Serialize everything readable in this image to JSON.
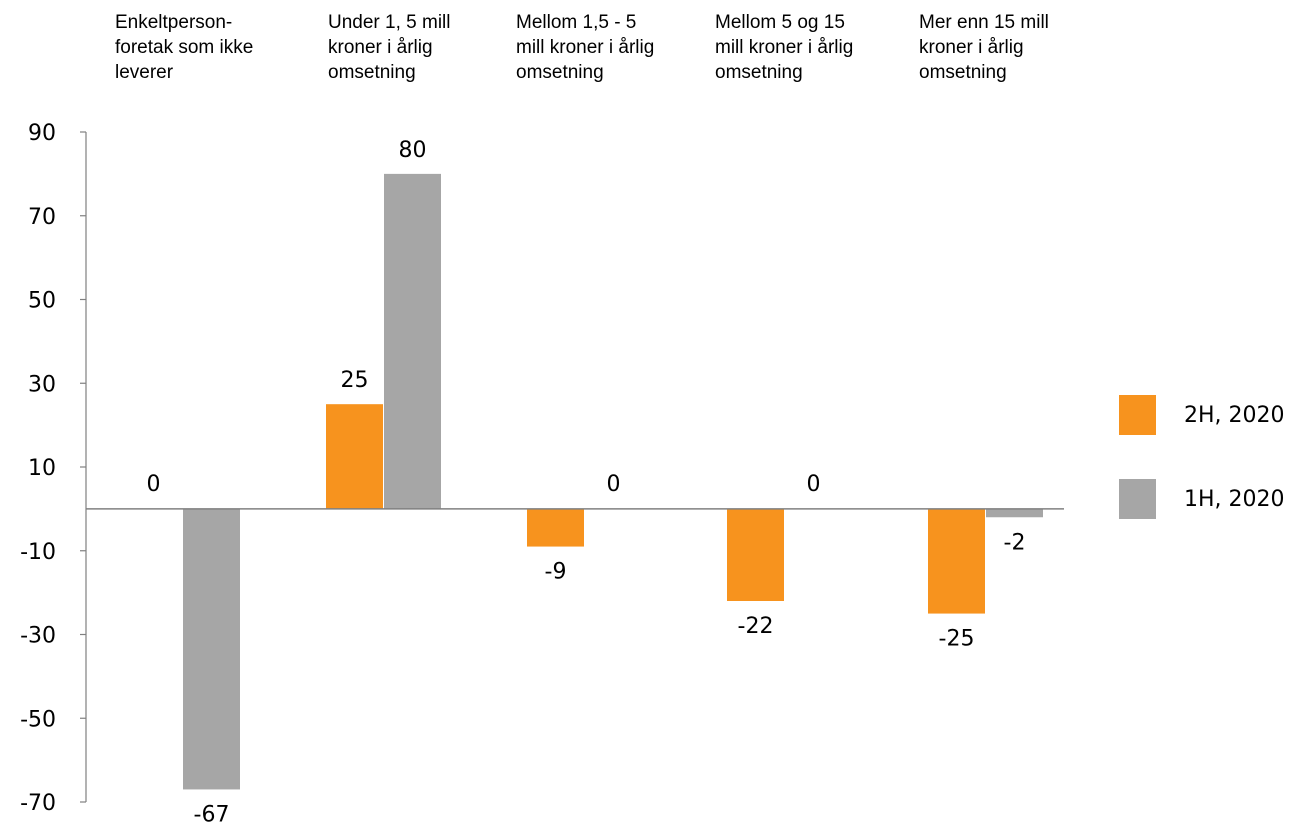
{
  "chart_data": {
    "type": "bar",
    "categories": [
      "Enkeltperson-foretak som ikke leverer",
      "Under 1, 5 mill kroner i årlig omsetning",
      "Mellom 1,5 - 5 mill kroner i årlig omsetning",
      "Mellom 5 og 15 mill kroner i årlig omsetning",
      "Mer enn 15 mill kroner i årlig omsetning"
    ],
    "category_lines": [
      [
        "Enkeltperson-",
        "foretak som ikke",
        "leverer"
      ],
      [
        "Under 1, 5 mill",
        "kroner i årlig",
        "omsetning"
      ],
      [
        "Mellom 1,5 - 5",
        "mill kroner i årlig",
        "omsetning"
      ],
      [
        "Mellom 5 og 15",
        "mill kroner i årlig",
        "omsetning"
      ],
      [
        "Mer enn 15 mill",
        "kroner i årlig",
        "omsetning"
      ]
    ],
    "series": [
      {
        "name": "2H, 2020",
        "color": "#F7931E",
        "values": [
          0,
          25,
          -9,
          -22,
          -25
        ]
      },
      {
        "name": "1H, 2020",
        "color": "#A6A6A6",
        "values": [
          -67,
          80,
          0,
          0,
          -2
        ]
      }
    ],
    "ylim": [
      -70,
      90
    ],
    "yticks": [
      90,
      70,
      50,
      30,
      10,
      -10,
      -30,
      -50,
      -70
    ],
    "grid": false,
    "legend_position": "right",
    "title": "",
    "xlabel": "",
    "ylabel": ""
  }
}
